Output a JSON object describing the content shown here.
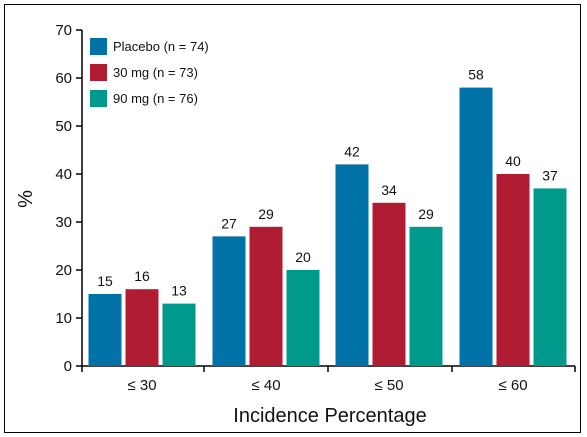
{
  "chart_data": {
    "type": "bar",
    "title": "",
    "xlabel": "Incidence Percentage",
    "ylabel": "%",
    "ylim": [
      0,
      70
    ],
    "yticks": [
      0,
      10,
      20,
      30,
      40,
      50,
      60,
      70
    ],
    "grid": false,
    "legend_position": "top-left",
    "categories": [
      "≤ 30",
      "≤ 40",
      "≤ 50",
      "≤ 60"
    ],
    "series": [
      {
        "name": "Placebo (n = 74)",
        "color": "#0072a8",
        "values": [
          15,
          27,
          42,
          58
        ]
      },
      {
        "name": "30 mg (n = 73)",
        "color": "#b01c31",
        "values": [
          16,
          29,
          34,
          40
        ]
      },
      {
        "name": "90 mg (n = 76)",
        "color": "#009a8c",
        "values": [
          13,
          20,
          29,
          37
        ]
      }
    ]
  }
}
